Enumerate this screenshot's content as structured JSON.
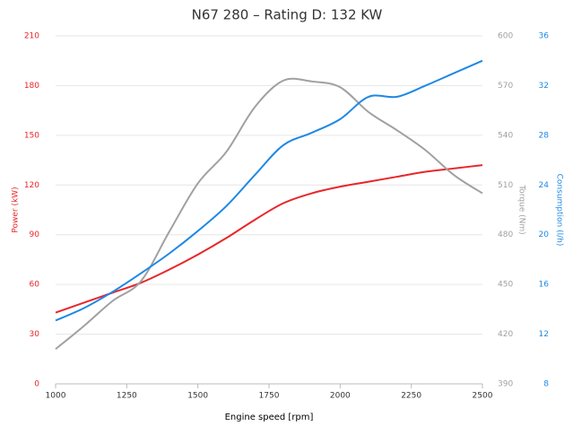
{
  "chart_data": {
    "type": "line",
    "title": "N67 280 – Rating D: 132 KW",
    "x_label": "Engine speed [rpm]",
    "y_label": "Power (kW)",
    "y2_label": "Torque (Nm)",
    "y3_label": "Consumption (l/h)",
    "x": [
      1000,
      1100,
      1200,
      1300,
      1400,
      1500,
      1600,
      1700,
      1800,
      1900,
      2000,
      2100,
      2200,
      2300,
      2400,
      2500
    ],
    "xlim": [
      1000,
      2500
    ],
    "xticks": [
      1000,
      1250,
      1500,
      1750,
      2000,
      2250,
      2500
    ],
    "ylim": [
      0,
      210
    ],
    "yticks": [
      0,
      30,
      60,
      90,
      120,
      150,
      180,
      210
    ],
    "y2lim": [
      390,
      600
    ],
    "y2ticks": [
      390,
      420,
      450,
      480,
      510,
      540,
      570,
      600
    ],
    "y3lim": [
      8,
      36
    ],
    "y3ticks": [
      8,
      12,
      16,
      20,
      24,
      28,
      32,
      36
    ],
    "grid": true,
    "series": [
      {
        "name": "Power",
        "color": "#e8262a",
        "axis": "y",
        "values": [
          43,
          49,
          55,
          61,
          69,
          78,
          88,
          99,
          109,
          115,
          119,
          122,
          125,
          128,
          130,
          132
        ]
      },
      {
        "name": "Torque",
        "color": "#a0a0a0",
        "axis": "y2",
        "values": [
          411,
          425,
          440,
          452,
          482,
          511,
          530,
          557,
          573,
          572.5,
          569,
          554,
          543,
          531,
          516,
          505
        ]
      },
      {
        "name": "Consumption",
        "color": "#1e88e5",
        "axis": "y3",
        "values": [
          13.1,
          14.1,
          15.4,
          16.9,
          18.5,
          20.3,
          22.3,
          24.8,
          27.2,
          28.2,
          29.3,
          31.1,
          31.1,
          32.0,
          33.0,
          34.0
        ]
      }
    ]
  }
}
